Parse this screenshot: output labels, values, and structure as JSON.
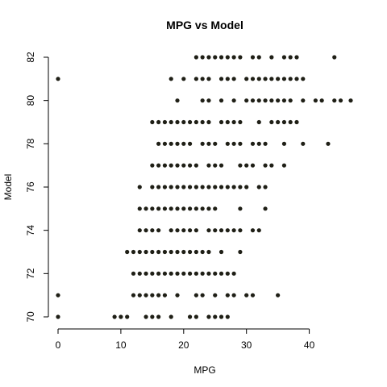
{
  "chart_data": {
    "type": "scatter",
    "title": "MPG vs Model",
    "xlabel": "MPG",
    "ylabel": "Model",
    "xlim": [
      0,
      46.6
    ],
    "ylim": [
      70,
      82
    ],
    "xticks": [
      0,
      10,
      20,
      30,
      40
    ],
    "yticks": [
      70,
      72,
      74,
      76,
      78,
      80,
      82
    ],
    "grid": false,
    "series": [
      {
        "points": [
          [
            0,
            70
          ],
          [
            9,
            70
          ],
          [
            10,
            70
          ],
          [
            11,
            70
          ],
          [
            14,
            70
          ],
          [
            15,
            70
          ],
          [
            16,
            70
          ],
          [
            18,
            70
          ],
          [
            21,
            70
          ],
          [
            22,
            70
          ],
          [
            24,
            70
          ],
          [
            25,
            70
          ],
          [
            26,
            70
          ],
          [
            27,
            70
          ],
          [
            0,
            71
          ],
          [
            12,
            71
          ],
          [
            13,
            71
          ],
          [
            14,
            71
          ],
          [
            15,
            71
          ],
          [
            16,
            71
          ],
          [
            17,
            71
          ],
          [
            19,
            71
          ],
          [
            22,
            71
          ],
          [
            23,
            71
          ],
          [
            25,
            71
          ],
          [
            27,
            71
          ],
          [
            28,
            71
          ],
          [
            30,
            71
          ],
          [
            31,
            71
          ],
          [
            35,
            71
          ],
          [
            12,
            72
          ],
          [
            13,
            72
          ],
          [
            14,
            72
          ],
          [
            15,
            72
          ],
          [
            16,
            72
          ],
          [
            17,
            72
          ],
          [
            18,
            72
          ],
          [
            19,
            72
          ],
          [
            20,
            72
          ],
          [
            21,
            72
          ],
          [
            22,
            72
          ],
          [
            23,
            72
          ],
          [
            24,
            72
          ],
          [
            25,
            72
          ],
          [
            26,
            72
          ],
          [
            27,
            72
          ],
          [
            28,
            72
          ],
          [
            11,
            73
          ],
          [
            12,
            73
          ],
          [
            13,
            73
          ],
          [
            14,
            73
          ],
          [
            15,
            73
          ],
          [
            16,
            73
          ],
          [
            17,
            73
          ],
          [
            18,
            73
          ],
          [
            19,
            73
          ],
          [
            20,
            73
          ],
          [
            21,
            73
          ],
          [
            22,
            73
          ],
          [
            23,
            73
          ],
          [
            24,
            73
          ],
          [
            26,
            73
          ],
          [
            29,
            73
          ],
          [
            13,
            74
          ],
          [
            14,
            74
          ],
          [
            15,
            74
          ],
          [
            16,
            74
          ],
          [
            18,
            74
          ],
          [
            19,
            74
          ],
          [
            20,
            74
          ],
          [
            21,
            74
          ],
          [
            22,
            74
          ],
          [
            24,
            74
          ],
          [
            25,
            74
          ],
          [
            26,
            74
          ],
          [
            27,
            74
          ],
          [
            28,
            74
          ],
          [
            29,
            74
          ],
          [
            31,
            74
          ],
          [
            32,
            74
          ],
          [
            13,
            75
          ],
          [
            14,
            75
          ],
          [
            15,
            75
          ],
          [
            16,
            75
          ],
          [
            17,
            75
          ],
          [
            18,
            75
          ],
          [
            19,
            75
          ],
          [
            20,
            75
          ],
          [
            21,
            75
          ],
          [
            22,
            75
          ],
          [
            23,
            75
          ],
          [
            24,
            75
          ],
          [
            25,
            75
          ],
          [
            29,
            75
          ],
          [
            33,
            75
          ],
          [
            13,
            76
          ],
          [
            15,
            76
          ],
          [
            16,
            76
          ],
          [
            17,
            76
          ],
          [
            18,
            76
          ],
          [
            19,
            76
          ],
          [
            20,
            76
          ],
          [
            21,
            76
          ],
          [
            22,
            76
          ],
          [
            23,
            76
          ],
          [
            24,
            76
          ],
          [
            25,
            76
          ],
          [
            26,
            76
          ],
          [
            27,
            76
          ],
          [
            28,
            76
          ],
          [
            29,
            76
          ],
          [
            30,
            76
          ],
          [
            32,
            76
          ],
          [
            33,
            76
          ],
          [
            15,
            77
          ],
          [
            16,
            77
          ],
          [
            17,
            77
          ],
          [
            18,
            77
          ],
          [
            19,
            77
          ],
          [
            20,
            77
          ],
          [
            21,
            77
          ],
          [
            22,
            77
          ],
          [
            24,
            77
          ],
          [
            25,
            77
          ],
          [
            26,
            77
          ],
          [
            29,
            77
          ],
          [
            30,
            77
          ],
          [
            31,
            77
          ],
          [
            33,
            77
          ],
          [
            34,
            77
          ],
          [
            36,
            77
          ],
          [
            16,
            78
          ],
          [
            17,
            78
          ],
          [
            18,
            78
          ],
          [
            19,
            78
          ],
          [
            20,
            78
          ],
          [
            21,
            78
          ],
          [
            23,
            78
          ],
          [
            24,
            78
          ],
          [
            25,
            78
          ],
          [
            27,
            78
          ],
          [
            28,
            78
          ],
          [
            29,
            78
          ],
          [
            31,
            78
          ],
          [
            32,
            78
          ],
          [
            33,
            78
          ],
          [
            36,
            78
          ],
          [
            39,
            78
          ],
          [
            43,
            78
          ],
          [
            15,
            79
          ],
          [
            16,
            79
          ],
          [
            17,
            79
          ],
          [
            18,
            79
          ],
          [
            19,
            79
          ],
          [
            20,
            79
          ],
          [
            21,
            79
          ],
          [
            22,
            79
          ],
          [
            23,
            79
          ],
          [
            24,
            79
          ],
          [
            26,
            79
          ],
          [
            27,
            79
          ],
          [
            28,
            79
          ],
          [
            29,
            79
          ],
          [
            32,
            79
          ],
          [
            34,
            79
          ],
          [
            35,
            79
          ],
          [
            36,
            79
          ],
          [
            37,
            79
          ],
          [
            38,
            79
          ],
          [
            19,
            80
          ],
          [
            23,
            80
          ],
          [
            24,
            80
          ],
          [
            26,
            80
          ],
          [
            28,
            80
          ],
          [
            30,
            80
          ],
          [
            31,
            80
          ],
          [
            32,
            80
          ],
          [
            33,
            80
          ],
          [
            34,
            80
          ],
          [
            35,
            80
          ],
          [
            36,
            80
          ],
          [
            37,
            80
          ],
          [
            39,
            80
          ],
          [
            41,
            80
          ],
          [
            42,
            80
          ],
          [
            44,
            80
          ],
          [
            45,
            80
          ],
          [
            46.6,
            80
          ],
          [
            0,
            81
          ],
          [
            18,
            81
          ],
          [
            20,
            81
          ],
          [
            22,
            81
          ],
          [
            23,
            81
          ],
          [
            24,
            81
          ],
          [
            26,
            81
          ],
          [
            27,
            81
          ],
          [
            28,
            81
          ],
          [
            30,
            81
          ],
          [
            31,
            81
          ],
          [
            32,
            81
          ],
          [
            33,
            81
          ],
          [
            34,
            81
          ],
          [
            35,
            81
          ],
          [
            36,
            81
          ],
          [
            37,
            81
          ],
          [
            38,
            81
          ],
          [
            39,
            81
          ],
          [
            22,
            82
          ],
          [
            23,
            82
          ],
          [
            24,
            82
          ],
          [
            25,
            82
          ],
          [
            26,
            82
          ],
          [
            27,
            82
          ],
          [
            28,
            82
          ],
          [
            29,
            82
          ],
          [
            31,
            82
          ],
          [
            32,
            82
          ],
          [
            34,
            82
          ],
          [
            36,
            82
          ],
          [
            37,
            82
          ],
          [
            38,
            82
          ],
          [
            44,
            82
          ]
        ]
      }
    ]
  }
}
